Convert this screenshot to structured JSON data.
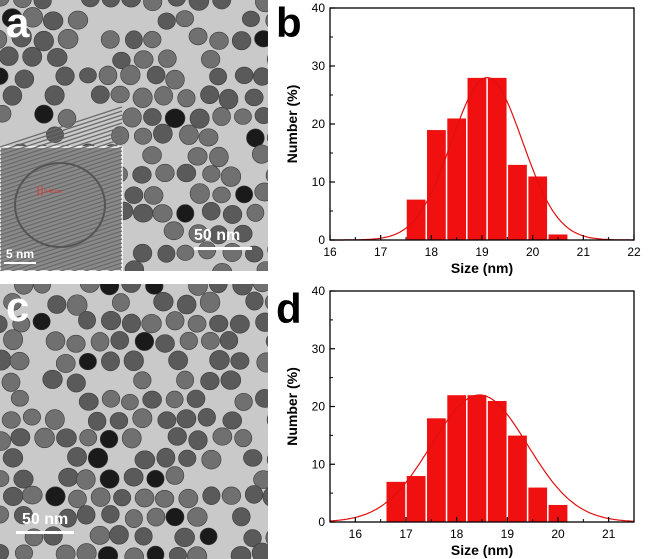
{
  "panels": {
    "a": {
      "letter": "a",
      "scale": "50 nm",
      "inset_scale": "5 nm",
      "inset_lattice": "0.48 nm"
    },
    "b": {
      "letter": "b"
    },
    "c": {
      "letter": "c",
      "scale": "50 nm"
    },
    "d": {
      "letter": "d"
    }
  },
  "colors": {
    "bar": "#f01010",
    "curve": "#e01010",
    "axis": "#000000"
  },
  "chart_data": [
    {
      "type": "bar",
      "panel": "b",
      "xlabel": "Size (nm)",
      "ylabel": "Number (%)",
      "xlim": [
        16,
        22
      ],
      "ylim": [
        0,
        40
      ],
      "xticks": [
        "16",
        "17",
        "18",
        "19",
        "20",
        "21",
        "22"
      ],
      "yticks": [
        "0",
        "10",
        "20",
        "30",
        "40"
      ],
      "bin_width": 0.4,
      "x": [
        17.7,
        18.1,
        18.5,
        18.9,
        19.3,
        19.7,
        20.1,
        20.5
      ],
      "values": [
        7,
        19,
        21,
        28,
        28,
        13,
        11,
        1
      ],
      "fit": {
        "type": "gaussian",
        "center": 19.1,
        "sigma": 0.7,
        "peak": 28
      }
    },
    {
      "type": "bar",
      "panel": "d",
      "xlabel": "Size (nm)",
      "ylabel": "Number (%)",
      "xlim": [
        15.5,
        21.5
      ],
      "ylim": [
        0,
        40
      ],
      "xticks": [
        "16",
        "17",
        "18",
        "19",
        "20",
        "21"
      ],
      "yticks": [
        "0",
        "10",
        "20",
        "30",
        "40"
      ],
      "bin_width": 0.4,
      "x": [
        16.8,
        17.2,
        17.6,
        18.0,
        18.4,
        18.8,
        19.2,
        19.6,
        20.0
      ],
      "values": [
        7,
        8,
        18,
        22,
        22,
        21,
        15,
        6,
        3
      ],
      "fit": {
        "type": "gaussian",
        "center": 18.45,
        "sigma": 0.95,
        "peak": 22
      }
    }
  ]
}
